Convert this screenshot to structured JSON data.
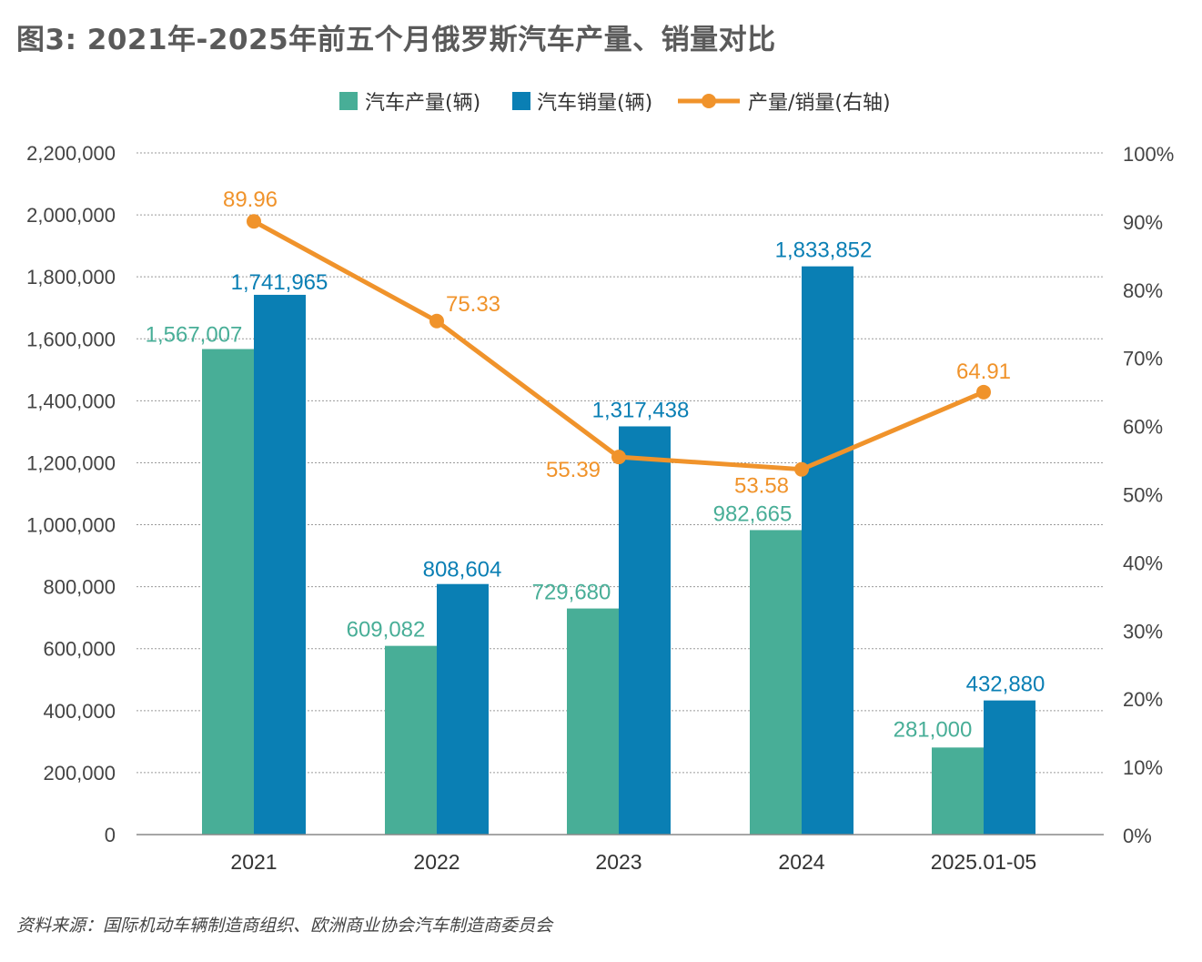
{
  "title": "图3: 2021年-2025年前五个月俄罗斯汽车产量、销量对比",
  "source": "资料来源：国际机动车辆制造商组织、欧洲商业协会汽车制造商委员会",
  "colors": {
    "production": "#48ae97",
    "sales": "#0a7fb4",
    "ratio": "#f0932b",
    "grid": "#9a9a9a"
  },
  "legend": {
    "production": "汽车产量(辆)",
    "sales": "汽车销量(辆)",
    "ratio": "产量/销量(右轴)"
  },
  "chart_data": {
    "type": "bar",
    "categories": [
      "2021",
      "2022",
      "2023",
      "2024",
      "2025.01-05"
    ],
    "series": [
      {
        "name": "汽车产量(辆)",
        "type": "bar",
        "axis": "left",
        "values": [
          1567007,
          609082,
          729680,
          982665,
          281000
        ],
        "labels": [
          "1,567,007",
          "609,082",
          "729,680",
          "982,665",
          "281,000"
        ]
      },
      {
        "name": "汽车销量(辆)",
        "type": "bar",
        "axis": "left",
        "values": [
          1741965,
          808604,
          1317438,
          1833852,
          432880
        ],
        "labels": [
          "1,741,965",
          "808,604",
          "1,317,438",
          "1,833,852",
          "432,880"
        ]
      },
      {
        "name": "产量/销量(右轴)",
        "type": "line",
        "axis": "right",
        "values": [
          89.96,
          75.33,
          55.39,
          53.58,
          64.91
        ],
        "labels": [
          "89.96",
          "75.33",
          "55.39",
          "53.58",
          "64.91"
        ]
      }
    ],
    "ylim": [
      0,
      2200000
    ],
    "y2lim": [
      0,
      100
    ],
    "yticks": [
      "0",
      "200,000",
      "400,000",
      "600,000",
      "800,000",
      "1,000,000",
      "1,200,000",
      "1,400,000",
      "1,600,000",
      "1,800,000",
      "2,000,000",
      "2,200,000"
    ],
    "y2ticks": [
      "0%",
      "10%",
      "20%",
      "30%",
      "40%",
      "50%",
      "60%",
      "70%",
      "80%",
      "90%",
      "100%"
    ],
    "grid": true,
    "legend_position": "top-center"
  }
}
